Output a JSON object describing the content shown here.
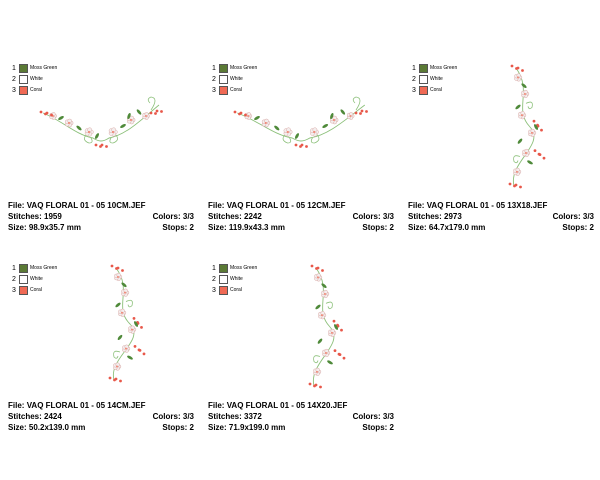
{
  "legend": [
    {
      "num": "1",
      "name": "Moss Green",
      "color": "#5b7a35"
    },
    {
      "num": "2",
      "name": "White",
      "color": "#ffffff"
    },
    {
      "num": "3",
      "name": "Coral",
      "color": "#f06a55"
    }
  ],
  "labels": {
    "file": "File:",
    "stitches": "Stitches:",
    "size": "Size:",
    "colors": "Colors:",
    "stops": "Stops:"
  },
  "designs": [
    {
      "file": "VAQ FLORAL 01 - 05 10CM.JEF",
      "stitches": "1959",
      "size": "98.9x35.7 mm",
      "colors": "3/3",
      "stops": "2"
    },
    {
      "file": "VAQ FLORAL 01 - 05 12CM.JEF",
      "stitches": "2242",
      "size": "119.9x43.3 mm",
      "colors": "3/3",
      "stops": "2"
    },
    {
      "file": "VAQ FLORAL 01 - 05 13X18.JEF",
      "stitches": "2973",
      "size": "64.7x179.0 mm",
      "colors": "3/3",
      "stops": "2"
    },
    {
      "file": "VAQ FLORAL 01 - 05 14CM.JEF",
      "stitches": "2424",
      "size": "50.2x139.0 mm",
      "colors": "3/3",
      "stops": "2"
    },
    {
      "file": "VAQ FLORAL 01 - 05 14X20.JEF",
      "stitches": "3372",
      "size": "71.9x199.0 mm",
      "colors": "3/3",
      "stops": "2"
    }
  ]
}
